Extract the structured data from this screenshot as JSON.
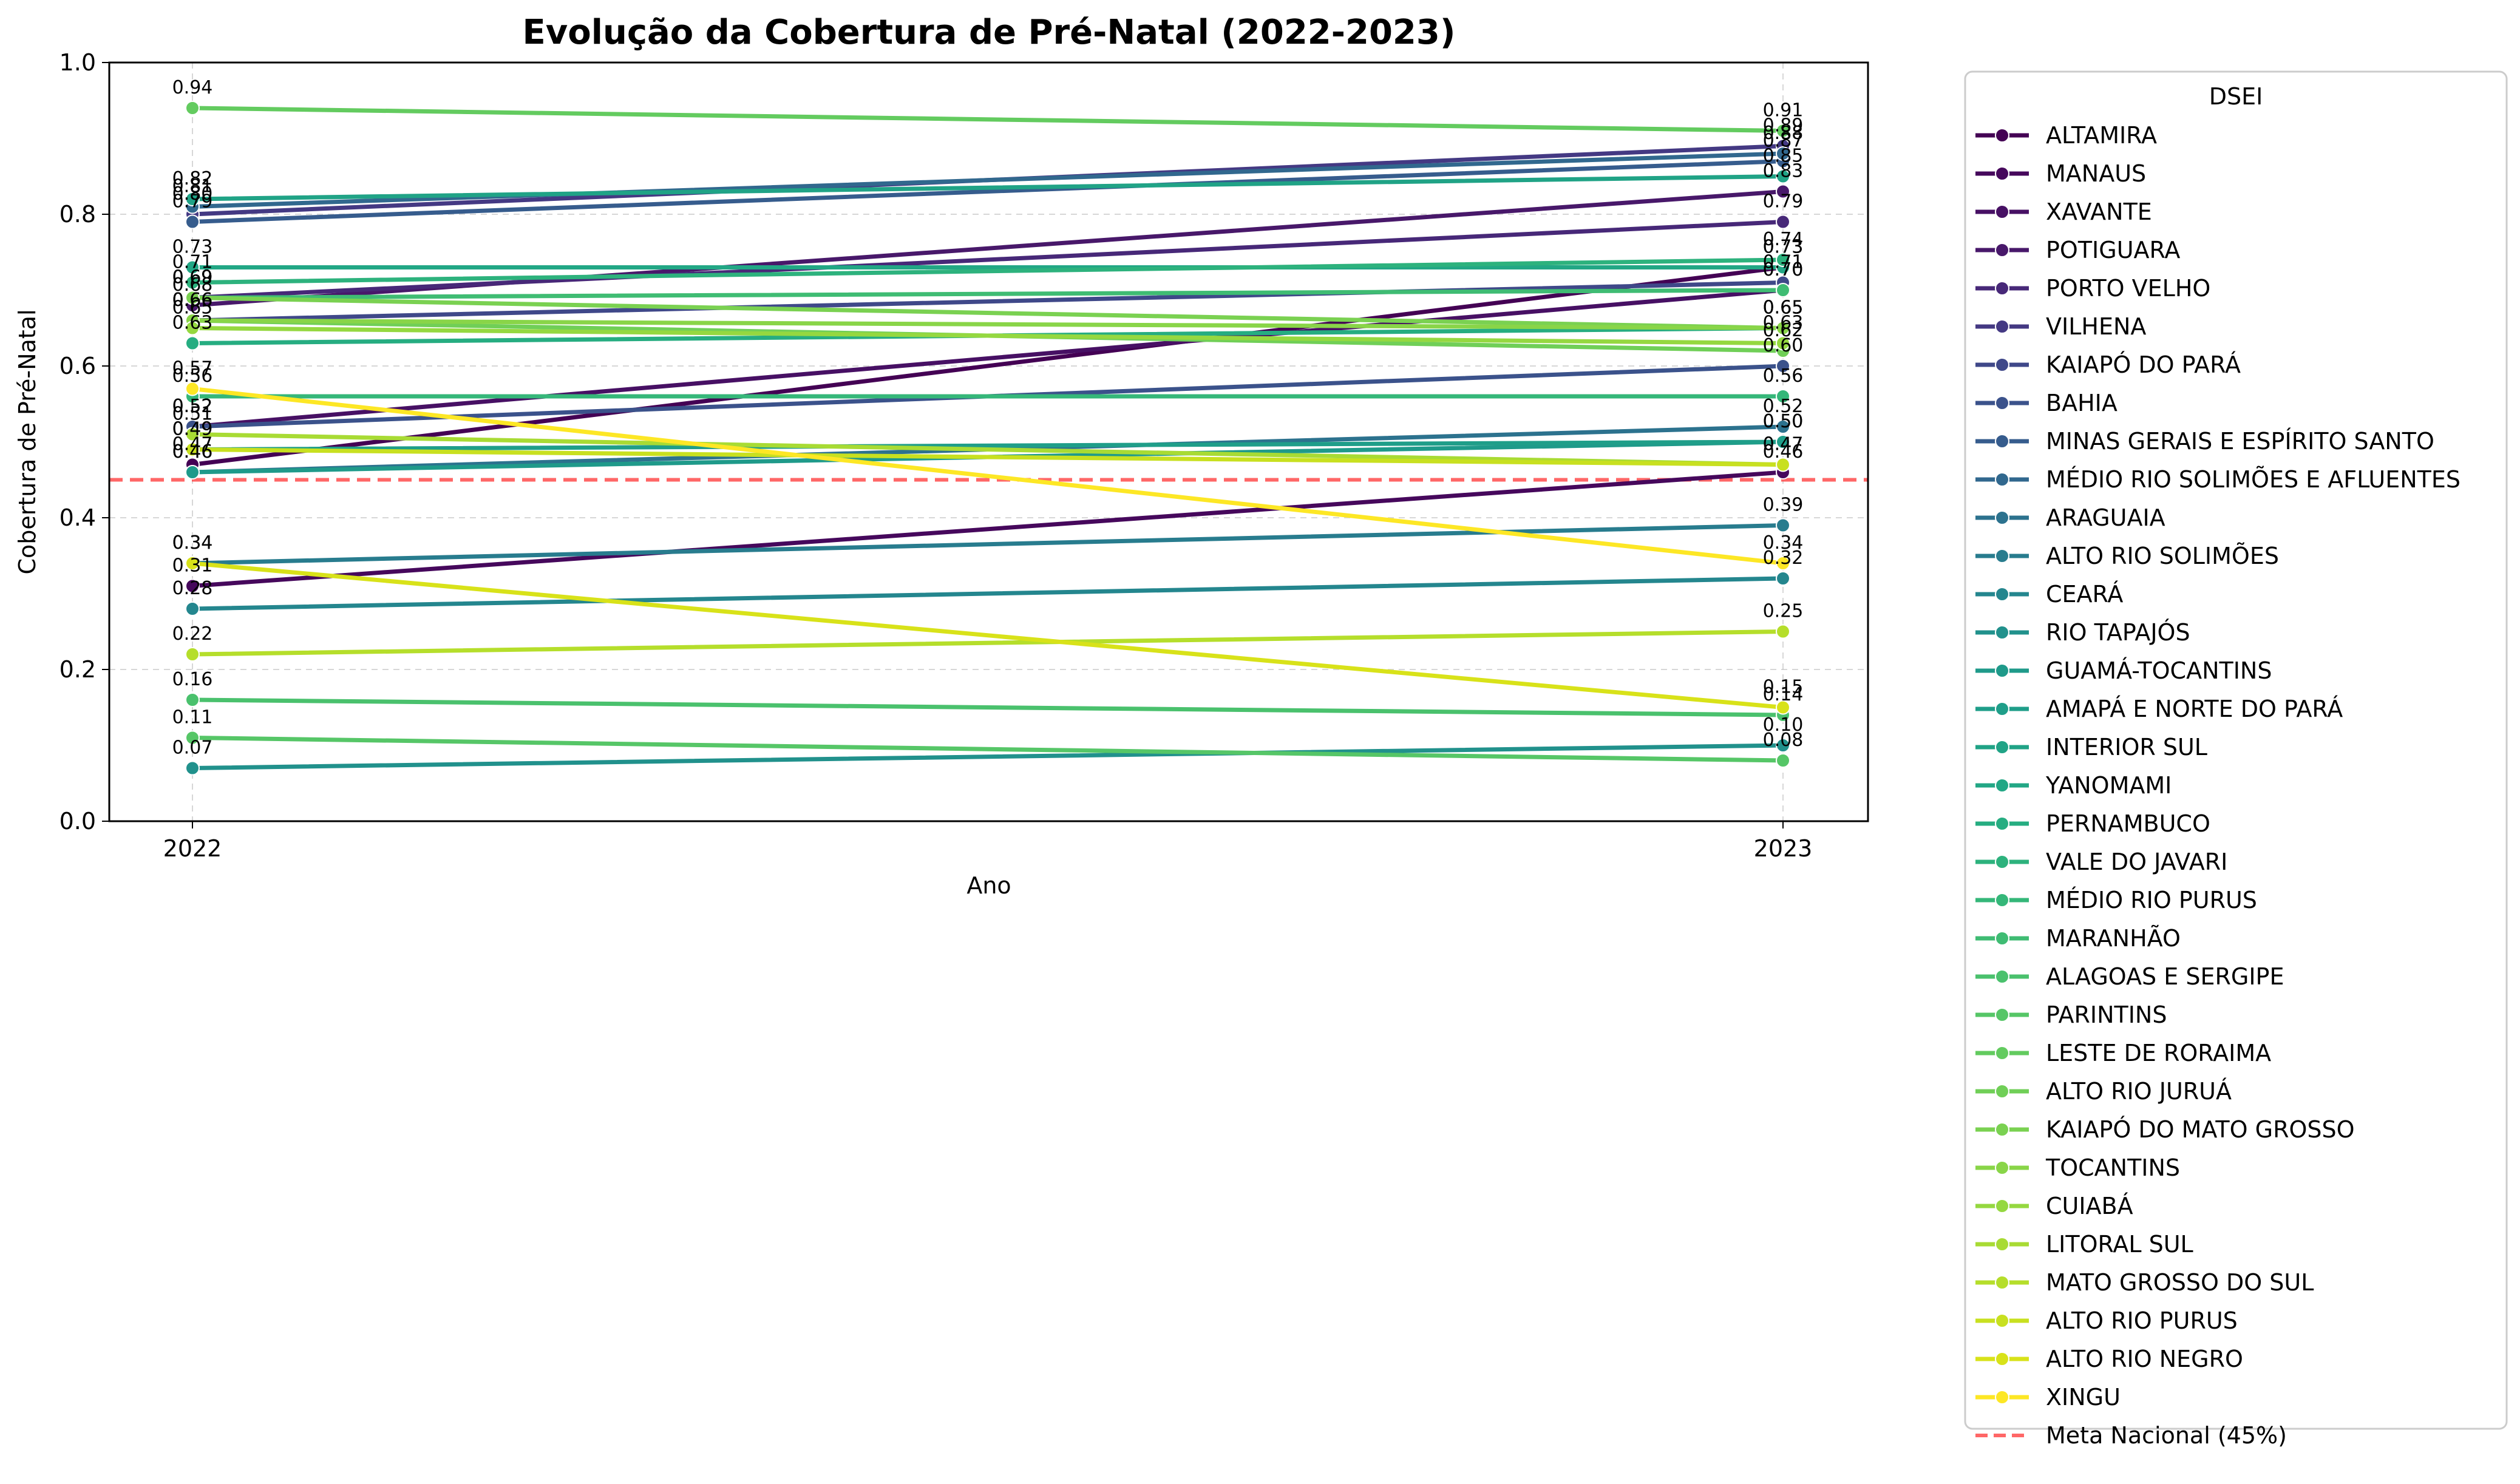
{
  "chart_data": {
    "type": "line",
    "title": "Evolução da Cobertura de Pré-Natal (2022-2023)",
    "xlabel": "Ano",
    "ylabel": "Cobertura de Pré-Natal",
    "x": [
      "2022",
      "2023"
    ],
    "ylim": [
      0.0,
      1.0
    ],
    "yticks": [
      "0.0",
      "0.2",
      "0.4",
      "0.6",
      "0.8",
      "1.0"
    ],
    "grid": true,
    "legend_title": "DSEI",
    "legend_position": "outside-right",
    "reference_line": {
      "name": "Meta Nacional (45%)",
      "value": 0.45,
      "color": "#ff4d4d",
      "style": "dashed"
    },
    "series": [
      {
        "name": "ALTAMIRA",
        "color": "#440154",
        "values": [
          0.47,
          0.73
        ]
      },
      {
        "name": "MANAUS",
        "color": "#46085c",
        "values": [
          0.31,
          0.46
        ]
      },
      {
        "name": "XAVANTE",
        "color": "#471064",
        "values": [
          0.52,
          0.7
        ]
      },
      {
        "name": "POTIGUARA",
        "color": "#48186a",
        "values": [
          0.68,
          0.83
        ]
      },
      {
        "name": "PORTO VELHO",
        "color": "#472878",
        "values": [
          0.69,
          0.79
        ]
      },
      {
        "name": "VILHENA",
        "color": "#443983",
        "values": [
          0.8,
          0.89
        ]
      },
      {
        "name": "KAIAPÓ DO PARÁ",
        "color": "#3f4889",
        "values": [
          0.66,
          0.71
        ]
      },
      {
        "name": "BAHIA",
        "color": "#3b528b",
        "values": [
          0.52,
          0.6
        ]
      },
      {
        "name": "MINAS GERAIS E ESPÍRITO SANTO",
        "color": "#365c8d",
        "values": [
          0.79,
          0.87
        ]
      },
      {
        "name": "MÉDIO RIO SOLIMÕES E AFLUENTES",
        "color": "#31688e",
        "values": [
          0.81,
          0.88
        ]
      },
      {
        "name": "ARAGUAIA",
        "color": "#2c728e",
        "values": [
          0.46,
          0.52
        ]
      },
      {
        "name": "ALTO RIO SOLIMÕES",
        "color": "#287c8e",
        "values": [
          0.34,
          0.39
        ]
      },
      {
        "name": "CEARÁ",
        "color": "#24868e",
        "values": [
          0.28,
          0.32
        ]
      },
      {
        "name": "RIO TAPAJÓS",
        "color": "#21918c",
        "values": [
          0.07,
          0.1
        ]
      },
      {
        "name": "GUAMÁ-TOCANTINS",
        "color": "#1f9a8a",
        "values": [
          0.46,
          0.5
        ]
      },
      {
        "name": "AMAPÁ E NORTE DO PARÁ",
        "color": "#1f9e89",
        "values": [
          0.49,
          0.5
        ]
      },
      {
        "name": "INTERIOR SUL",
        "color": "#20a386",
        "values": [
          0.82,
          0.85
        ]
      },
      {
        "name": "YANOMAMI",
        "color": "#22a785",
        "values": [
          0.73,
          0.73
        ]
      },
      {
        "name": "PERNAMBUCO",
        "color": "#26ad81",
        "values": [
          0.63,
          0.65
        ]
      },
      {
        "name": "VALE DO JAVARI",
        "color": "#2db27d",
        "values": [
          0.71,
          0.74
        ]
      },
      {
        "name": "MÉDIO RIO PURUS",
        "color": "#35b779",
        "values": [
          0.56,
          0.56
        ]
      },
      {
        "name": "MARANHÃO",
        "color": "#3fbc73",
        "values": [
          0.69,
          0.7
        ]
      },
      {
        "name": "ALAGOAS E SERGIPE",
        "color": "#4ac16d",
        "values": [
          0.16,
          0.14
        ]
      },
      {
        "name": "PARINTINS",
        "color": "#56c667",
        "values": [
          0.11,
          0.08
        ]
      },
      {
        "name": "LESTE DE RORAIMA",
        "color": "#63cb5f",
        "values": [
          0.94,
          0.91
        ]
      },
      {
        "name": "ALTO RIO JURUÁ",
        "color": "#70cf57",
        "values": [
          0.66,
          0.62
        ]
      },
      {
        "name": "KAIAPÓ DO MATO GROSSO",
        "color": "#7ad151",
        "values": [
          0.69,
          0.65
        ]
      },
      {
        "name": "TOCANTINS",
        "color": "#89d548",
        "values": [
          0.66,
          0.65
        ]
      },
      {
        "name": "CUIABÁ",
        "color": "#95d840",
        "values": [
          0.65,
          0.63
        ]
      },
      {
        "name": "LITORAL SUL",
        "color": "#a8db34",
        "values": [
          0.51,
          0.47
        ]
      },
      {
        "name": "MATO GROSSO DO SUL",
        "color": "#b5de2b",
        "values": [
          0.22,
          0.25
        ]
      },
      {
        "name": "ALTO RIO PURUS",
        "color": "#c8e020",
        "values": [
          0.49,
          0.47
        ]
      },
      {
        "name": "ALTO RIO NEGRO",
        "color": "#d8e219",
        "values": [
          0.34,
          0.15
        ]
      },
      {
        "name": "XINGU",
        "color": "#fde725",
        "values": [
          0.57,
          0.34
        ]
      }
    ]
  }
}
